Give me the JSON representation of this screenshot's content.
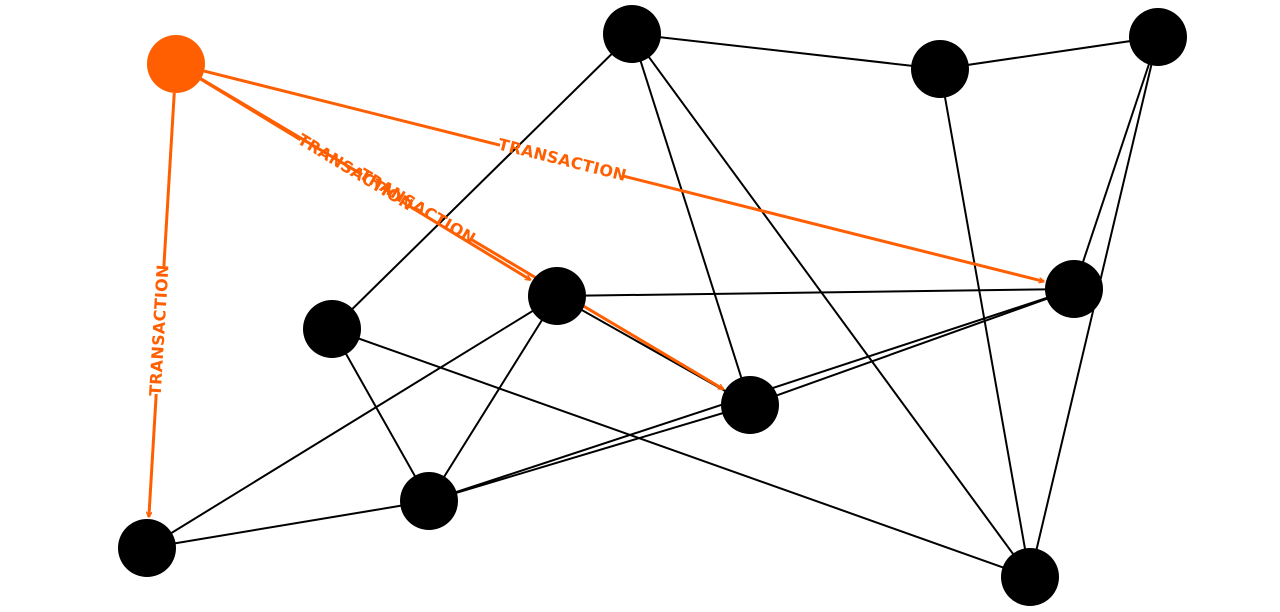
{
  "colors": {
    "highlight": "#FF5F00",
    "node": "#000000",
    "edge": "#000000",
    "background": "#FFFFFF"
  },
  "nodes": [
    {
      "id": "source",
      "highlighted": true
    },
    {
      "id": "n1"
    },
    {
      "id": "n2"
    },
    {
      "id": "n3"
    },
    {
      "id": "n4"
    },
    {
      "id": "n5"
    },
    {
      "id": "n6"
    },
    {
      "id": "n7"
    },
    {
      "id": "n8"
    },
    {
      "id": "n9"
    },
    {
      "id": "n10"
    },
    {
      "id": "n11"
    }
  ],
  "edges": [
    [
      "n1",
      "n2"
    ],
    [
      "n1",
      "n5"
    ],
    [
      "n1",
      "n9"
    ],
    [
      "n1",
      "n10"
    ],
    [
      "n2",
      "n3"
    ],
    [
      "n2",
      "n10"
    ],
    [
      "n3",
      "n6"
    ],
    [
      "n3",
      "n11"
    ],
    [
      "n4",
      "n6"
    ],
    [
      "n4",
      "n8"
    ],
    [
      "n4",
      "n9"
    ],
    [
      "n4",
      "n7"
    ],
    [
      "n5",
      "n10"
    ],
    [
      "n5",
      "n8"
    ],
    [
      "n6",
      "n9"
    ],
    [
      "n6",
      "n8"
    ],
    [
      "n7",
      "n8"
    ],
    [
      "n8",
      "n9"
    ],
    [
      "n10",
      "n11"
    ]
  ],
  "transactions": [
    {
      "from": "source",
      "to": "n9",
      "label": "TRANSACTION"
    },
    {
      "from": "source",
      "to": "n4",
      "label": "TRANSACTION"
    },
    {
      "from": "source",
      "to": "n6",
      "label": "TRANSACTION"
    },
    {
      "from": "source",
      "to": "n7",
      "label": "TRANSACTION"
    }
  ]
}
